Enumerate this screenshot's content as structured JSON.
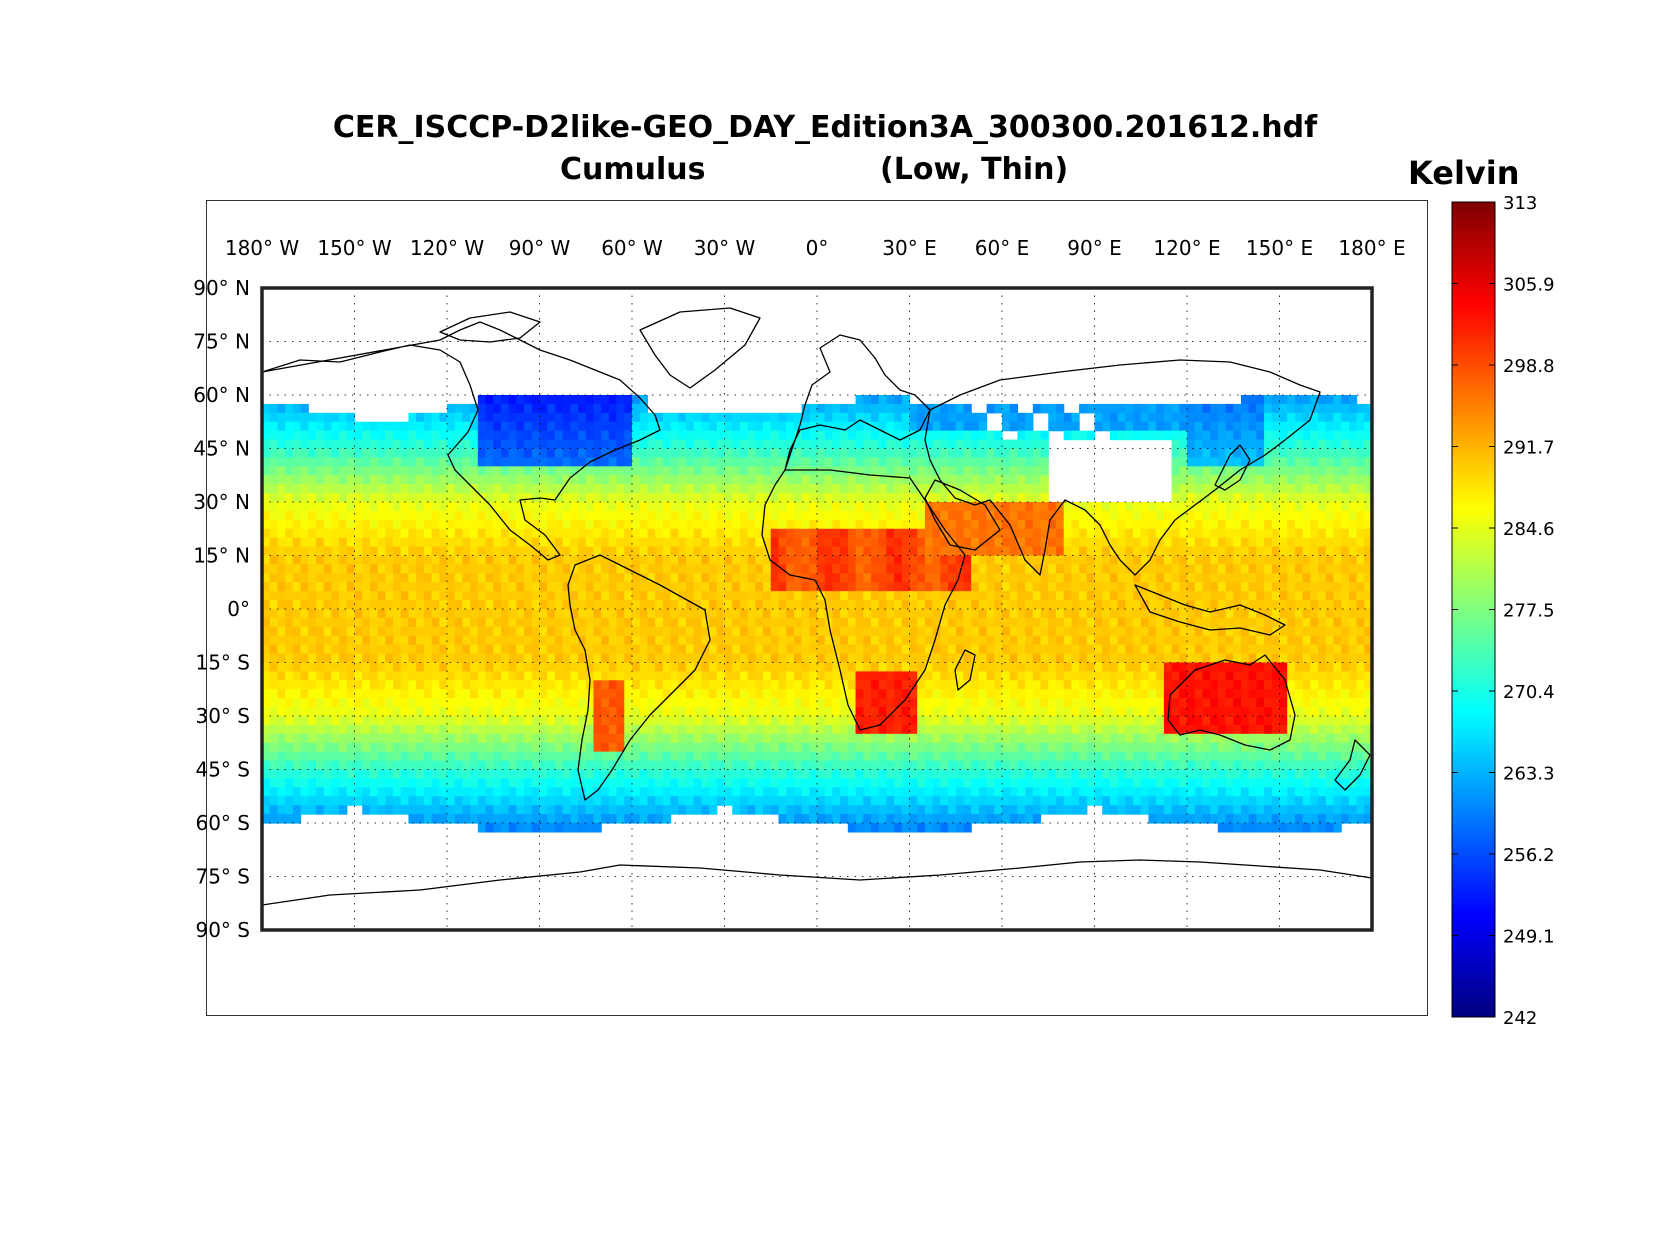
{
  "title": {
    "line1": "CER_ISCCP-D2like-GEO_DAY_Edition3A_300300.201612.hdf",
    "line2_left": "Cumulus",
    "line2_right": "(Low, Thin)"
  },
  "colorbar": {
    "units": "Kelvin",
    "min": 242,
    "max": 313,
    "ticks": [
      "313",
      "305.9",
      "298.8",
      "291.7",
      "284.6",
      "277.5",
      "270.4",
      "263.3",
      "256.2",
      "249.1",
      "242"
    ],
    "colors": [
      "#00007f",
      "#0000ff",
      "#007fff",
      "#00ffff",
      "#7fff7f",
      "#ffff00",
      "#ff7f00",
      "#ff0000",
      "#7f0000"
    ]
  },
  "map": {
    "projection": "equirectangular",
    "lon_ticks": [
      "180° W",
      "150° W",
      "120° W",
      "90° W",
      "60° W",
      "30° W",
      "0°",
      "30° E",
      "60° E",
      "90° E",
      "120° E",
      "150° E",
      "180° E"
    ],
    "lat_ticks": [
      "90° N",
      "75° N",
      "60° N",
      "45° N",
      "30° N",
      "15° N",
      "0°",
      "15° S",
      "30° S",
      "45° S",
      "60° S",
      "75° S",
      "90° S"
    ],
    "grid_style": "dotted",
    "missing_color": "#ffffff",
    "coastline_color": "#000000"
  }
}
